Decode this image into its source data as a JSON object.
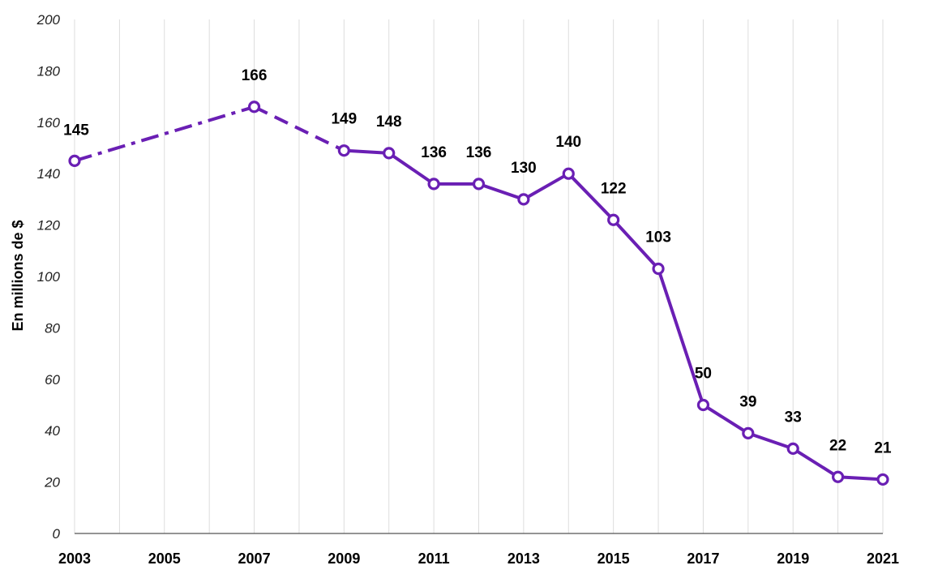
{
  "chart_data": {
    "type": "line",
    "ylabel": "En millions de $",
    "xlabel": "",
    "ylim": [
      0,
      200
    ],
    "yticks": [
      0,
      20,
      40,
      60,
      80,
      100,
      120,
      140,
      160,
      180,
      200
    ],
    "xlim": [
      2003,
      2021
    ],
    "xticks": [
      2003,
      2005,
      2007,
      2009,
      2011,
      2013,
      2015,
      2017,
      2019,
      2021
    ],
    "grid": "vertical",
    "line_color": "#6a1fb4",
    "points": [
      {
        "x": 2003,
        "y": 145
      },
      {
        "x": 2007,
        "y": 166
      },
      {
        "x": 2009,
        "y": 149
      },
      {
        "x": 2010,
        "y": 148
      },
      {
        "x": 2011,
        "y": 136
      },
      {
        "x": 2012,
        "y": 136
      },
      {
        "x": 2013,
        "y": 130
      },
      {
        "x": 2014,
        "y": 140
      },
      {
        "x": 2015,
        "y": 122
      },
      {
        "x": 2016,
        "y": 103
      },
      {
        "x": 2017,
        "y": 50
      },
      {
        "x": 2018,
        "y": 39
      },
      {
        "x": 2019,
        "y": 33
      },
      {
        "x": 2020,
        "y": 22
      },
      {
        "x": 2021,
        "y": 21
      }
    ],
    "segments": [
      {
        "from": 2003,
        "to": 2007,
        "style": "dashdot"
      },
      {
        "from": 2007,
        "to": 2009,
        "style": "dashed"
      },
      {
        "from": 2009,
        "to": 2021,
        "style": "solid"
      }
    ]
  }
}
